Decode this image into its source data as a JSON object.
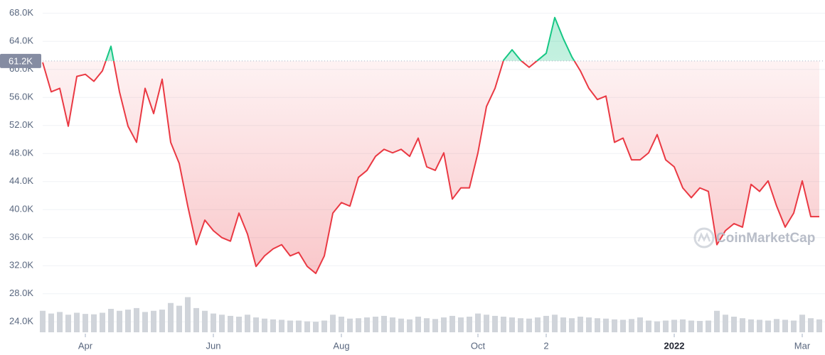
{
  "chart_data": {
    "type": "line",
    "categories": [
      null,
      null,
      null,
      null,
      null,
      "Apr",
      null,
      null,
      null,
      null,
      null,
      null,
      null,
      null,
      null,
      null,
      null,
      null,
      null,
      null,
      "Jun",
      null,
      null,
      null,
      null,
      null,
      null,
      null,
      null,
      null,
      null,
      null,
      null,
      null,
      null,
      "Aug",
      null,
      null,
      null,
      null,
      null,
      null,
      null,
      null,
      null,
      null,
      null,
      null,
      null,
      null,
      null,
      "Oct",
      null,
      null,
      null,
      null,
      null,
      null,
      null,
      "2",
      null,
      null,
      null,
      null,
      null,
      null,
      null,
      null,
      null,
      null,
      null,
      null,
      null,
      null,
      "2022",
      null,
      null,
      null,
      null,
      null,
      null,
      null,
      null,
      null,
      null,
      null,
      null,
      null,
      null,
      "Mar",
      null,
      null
    ],
    "values": [
      61000,
      56800,
      57300,
      51900,
      59000,
      59300,
      58300,
      59800,
      63300,
      56800,
      51900,
      49600,
      57300,
      53700,
      58600,
      49600,
      46600,
      40500,
      35000,
      38500,
      37000,
      36000,
      35500,
      39500,
      36500,
      31900,
      33400,
      34400,
      35000,
      33400,
      33900,
      31900,
      30900,
      33400,
      39500,
      41000,
      40500,
      44600,
      45600,
      47600,
      48600,
      48100,
      48600,
      47600,
      50200,
      46100,
      45600,
      48100,
      41500,
      43100,
      43100,
      48100,
      54700,
      57300,
      61300,
      62800,
      61300,
      60300,
      61300,
      62300,
      67400,
      64400,
      61800,
      59800,
      57300,
      55700,
      56200,
      49600,
      50200,
      47100,
      47100,
      48100,
      50700,
      47100,
      46100,
      43100,
      41700,
      43100,
      42600,
      35000,
      37000,
      38000,
      37500,
      43600,
      42600,
      44100,
      40500,
      37500,
      39500,
      44100,
      39000,
      39000
    ],
    "volume": [
      55,
      48,
      52,
      45,
      50,
      47,
      46,
      50,
      60,
      55,
      58,
      62,
      52,
      55,
      58,
      75,
      68,
      90,
      62,
      55,
      48,
      45,
      42,
      40,
      45,
      38,
      35,
      33,
      32,
      30,
      30,
      28,
      27,
      30,
      45,
      40,
      35,
      36,
      38,
      40,
      42,
      38,
      35,
      33,
      40,
      36,
      34,
      38,
      42,
      38,
      40,
      48,
      45,
      42,
      40,
      38,
      36,
      35,
      38,
      42,
      45,
      38,
      36,
      40,
      38,
      36,
      35,
      33,
      32,
      34,
      38,
      30,
      28,
      30,
      32,
      33,
      30,
      29,
      30,
      55,
      45,
      40,
      36,
      33,
      32,
      30,
      34,
      32,
      30,
      45,
      36,
      33
    ],
    "baseline": {
      "value": 61200,
      "label": "61.2K"
    },
    "ylim": [
      22300,
      69900
    ],
    "yticks": [
      {
        "value": 24000,
        "label": "24.0K"
      },
      {
        "value": 28000,
        "label": "28.0K"
      },
      {
        "value": 32000,
        "label": "32.0K"
      },
      {
        "value": 36000,
        "label": "36.0K"
      },
      {
        "value": 40000,
        "label": "40.0K"
      },
      {
        "value": 44000,
        "label": "44.0K"
      },
      {
        "value": 48000,
        "label": "48.0K"
      },
      {
        "value": 52000,
        "label": "52.0K"
      },
      {
        "value": 56000,
        "label": "56.0K"
      },
      {
        "value": 60000,
        "label": "60.0K"
      },
      {
        "value": 64000,
        "label": "64.0K"
      },
      {
        "value": 68000,
        "label": "68.0K"
      }
    ],
    "grid": true,
    "color_below": "#ea3943",
    "color_above": "#16c784",
    "volume_color": "#d0d4da",
    "watermark": "CoinMarketCap"
  }
}
